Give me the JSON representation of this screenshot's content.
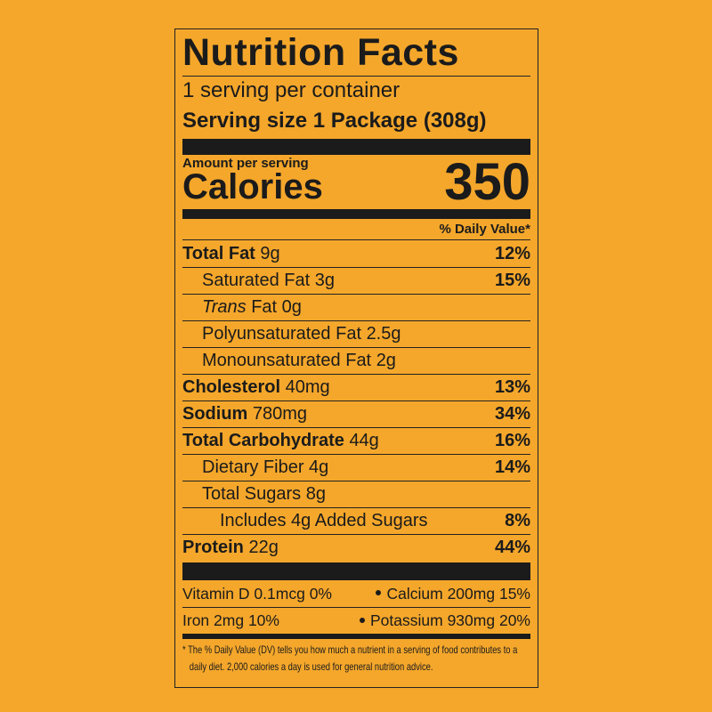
{
  "header": {
    "title": "Nutrition Facts",
    "servings": "1 serving per container",
    "serving_size_label": "Serving size",
    "serving_size": "1 Package (308g)"
  },
  "calories": {
    "amount_label": "Amount per serving",
    "label": "Calories",
    "value": 350
  },
  "dv_header": "% Daily Value*",
  "nutrients": [
    {
      "name": "Total Fat",
      "amount": "9g",
      "dv": "12%",
      "sub": [
        {
          "name": "Saturated Fat",
          "amount": "3g",
          "dv": "15%"
        },
        {
          "name_italic": "Trans",
          "name": "Fat",
          "amount": "0g"
        },
        {
          "name": "Polyunsaturated Fat",
          "amount": "2.5g"
        },
        {
          "name": "Monounsaturated Fat",
          "amount": "2g"
        }
      ]
    },
    {
      "name": "Cholesterol",
      "amount": "40mg",
      "dv": "13%"
    },
    {
      "name": "Sodium",
      "amount": "780mg",
      "dv": "34%"
    },
    {
      "name": "Total Carbohydrate",
      "amount": "44g",
      "dv": "16%",
      "sub": [
        {
          "name": "Dietary Fiber",
          "amount": "4g",
          "dv": "14%"
        },
        {
          "name": "Total Sugars",
          "amount": "8g",
          "sub": [
            {
              "name": "Includes 4g Added Sugars",
              "dv": "8%"
            }
          ]
        }
      ]
    },
    {
      "name": "Protein",
      "amount": "22g",
      "dv": "44%"
    }
  ],
  "vitamins": [
    {
      "name": "Vitamin D",
      "amount": "0.1mcg",
      "dv": "0%"
    },
    {
      "name": "Calcium",
      "amount": "200mg",
      "dv": "15%"
    },
    {
      "name": "Iron",
      "amount": "2mg",
      "dv": "10%"
    },
    {
      "name": "Potassium",
      "amount": "930mg",
      "dv": "20%"
    }
  ],
  "footnote": "* The % Daily Value (DV) tells you how much a nutrient in a serving of food contributes to a daily diet. 2,000 calories a day is used for general nutrition advice."
}
